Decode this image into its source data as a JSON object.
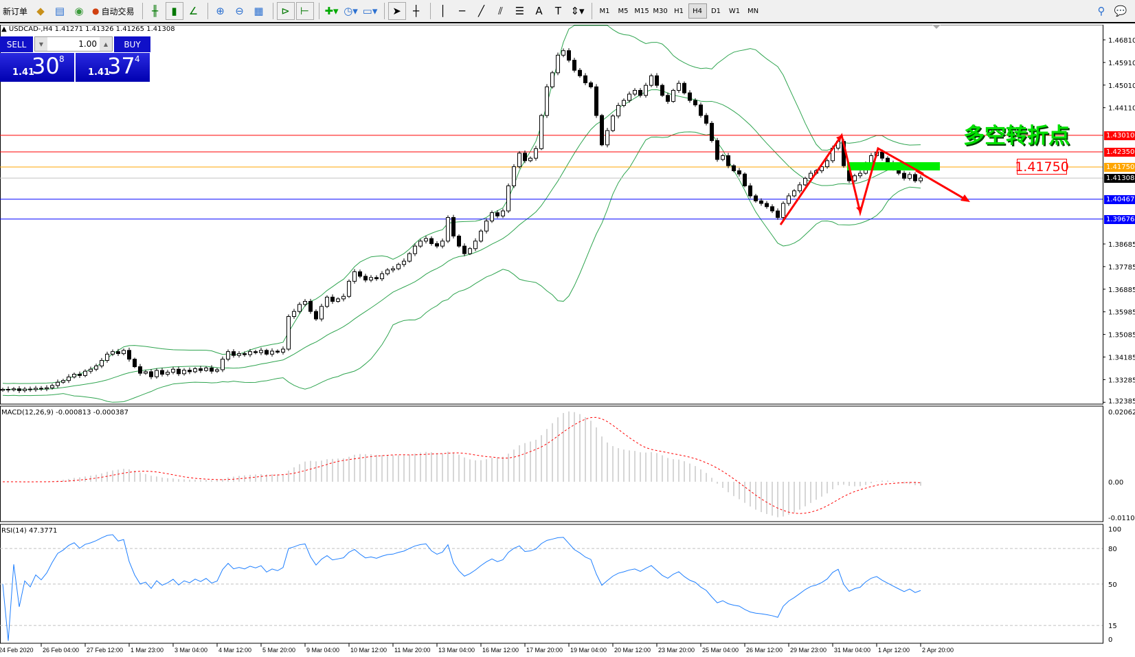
{
  "toolbar": {
    "new_order": "新订单",
    "auto_trading": "自动交易",
    "timeframes": [
      "M1",
      "M5",
      "M15",
      "M30",
      "H1",
      "H4",
      "D1",
      "W1",
      "MN"
    ],
    "active_timeframe": "H4"
  },
  "chart_title": "USDCAD-,H4  1.41271 1.41326 1.41265 1.41308",
  "trade_panel": {
    "sell": "SELL",
    "buy": "BUY",
    "lot": "1.00",
    "sell_price": {
      "prefix": "1.41",
      "big": "30",
      "sup": "8"
    },
    "buy_price": {
      "prefix": "1.41",
      "big": "37",
      "sup": "4"
    }
  },
  "annotations": {
    "text": "多空转折点",
    "level_label": "1.41750"
  },
  "colors": {
    "bull_body": "#ffffff",
    "bear_body": "#000000",
    "bands": "#2ea44f",
    "macd_hist": "#c0c0c0",
    "macd_signal": "#ff0000",
    "rsi": "#1e7fff",
    "accent_green": "#00e000"
  },
  "chart_data": [
    {
      "type": "candlestick",
      "symbol": "USDCAD-",
      "timeframe": "H4",
      "indicator": "Bollinger Bands(20,2)",
      "ylim": [
        1.32385,
        1.4731
      ],
      "y_ticks": [
        "1.46810",
        "1.45910",
        "1.45010",
        "1.44110",
        "1.38685",
        "1.37785",
        "1.36885",
        "1.35985",
        "1.35085",
        "1.34185",
        "1.33285",
        "1.32385"
      ],
      "x_ticks": [
        "24 Feb 2020",
        "26 Feb 04:00",
        "27 Feb 12:00",
        "1 Mar 23:00",
        "3 Mar 04:00",
        "4 Mar 12:00",
        "5 Mar 20:00",
        "9 Mar 04:00",
        "10 Mar 12:00",
        "11 Mar 20:00",
        "13 Mar 04:00",
        "16 Mar 12:00",
        "17 Mar 20:00",
        "19 Mar 04:00",
        "20 Mar 12:00",
        "23 Mar 20:00",
        "25 Mar 04:00",
        "26 Mar 12:00",
        "29 Mar 23:00",
        "31 Mar 04:00",
        "1 Apr 12:00",
        "2 Apr 20:00"
      ],
      "close": [
        1.329,
        1.3288,
        1.3292,
        1.3285,
        1.3291,
        1.3289,
        1.3294,
        1.3292,
        1.3296,
        1.3305,
        1.3318,
        1.3325,
        1.3339,
        1.335,
        1.3345,
        1.3362,
        1.337,
        1.3383,
        1.3405,
        1.343,
        1.344,
        1.3432,
        1.3445,
        1.341,
        1.338,
        1.3354,
        1.336,
        1.334,
        1.3365,
        1.335,
        1.3358,
        1.337,
        1.3352,
        1.3366,
        1.336,
        1.3372,
        1.3365,
        1.3375,
        1.3362,
        1.3368,
        1.341,
        1.344,
        1.3425,
        1.3432,
        1.3428,
        1.344,
        1.3436,
        1.3445,
        1.343,
        1.3442,
        1.3438,
        1.345,
        1.358,
        1.36,
        1.3628,
        1.364,
        1.36,
        1.357,
        1.362,
        1.3657,
        1.364,
        1.365,
        1.366,
        1.372,
        1.3758,
        1.374,
        1.3725,
        1.3735,
        1.373,
        1.375,
        1.3765,
        1.377,
        1.3787,
        1.38,
        1.383,
        1.386,
        1.388,
        1.389,
        1.387,
        1.386,
        1.388,
        1.3974,
        1.39,
        1.386,
        1.383,
        1.385,
        1.388,
        1.392,
        1.396,
        1.3993,
        1.398,
        1.4,
        1.41,
        1.4176,
        1.423,
        1.42,
        1.421,
        1.4248,
        1.438,
        1.4494,
        1.455,
        1.462,
        1.4638,
        1.46,
        1.456,
        1.4538,
        1.451,
        1.4494,
        1.438,
        1.4263,
        1.432,
        1.4378,
        1.442,
        1.444,
        1.4465,
        1.448,
        1.446,
        1.45,
        1.4538,
        1.45,
        1.446,
        1.4436,
        1.448,
        1.4508,
        1.447,
        1.444,
        1.4422,
        1.438,
        1.4349,
        1.428,
        1.4205,
        1.422,
        1.418,
        1.416,
        1.4147,
        1.41,
        1.406,
        1.404,
        1.403,
        1.4017,
        1.4,
        1.3974,
        1.403,
        1.406,
        1.408,
        1.4104,
        1.413,
        1.415,
        1.416,
        1.4176,
        1.42,
        1.425,
        1.4277,
        1.418,
        1.412,
        1.414,
        1.415,
        1.419,
        1.422,
        1.4234,
        1.421,
        1.419,
        1.417,
        1.415,
        1.413,
        1.4145,
        1.412,
        1.4131
      ],
      "levels": [
        {
          "price": "1.43010",
          "color": "#ff0000"
        },
        {
          "price": "1.42350",
          "color": "#ff0000"
        },
        {
          "price": "1.41750",
          "color": "#ffa500"
        },
        {
          "price": "1.41308",
          "color": "#000000",
          "line": "#c0c0c0"
        },
        {
          "price": "1.40467",
          "color": "#0000ff"
        },
        {
          "price": "1.39676",
          "color": "#0000ff"
        }
      ]
    },
    {
      "type": "bar",
      "indicator": "MACD",
      "label": "MACD(12,26,9) -0.000813 -0.000387",
      "params": [
        12,
        26,
        9
      ],
      "ylim": [
        -0.011023,
        0.02062
      ],
      "y_ticks": [
        "0.02062",
        "0.00",
        "-0.011023"
      ]
    },
    {
      "type": "line",
      "indicator": "RSI",
      "label": "RSI(14) 47.3771",
      "period": 14,
      "ylim": [
        0,
        100
      ],
      "levels": [
        80,
        50,
        15
      ],
      "y_ticks": [
        "100",
        "80",
        "50",
        "15",
        "0"
      ]
    }
  ]
}
